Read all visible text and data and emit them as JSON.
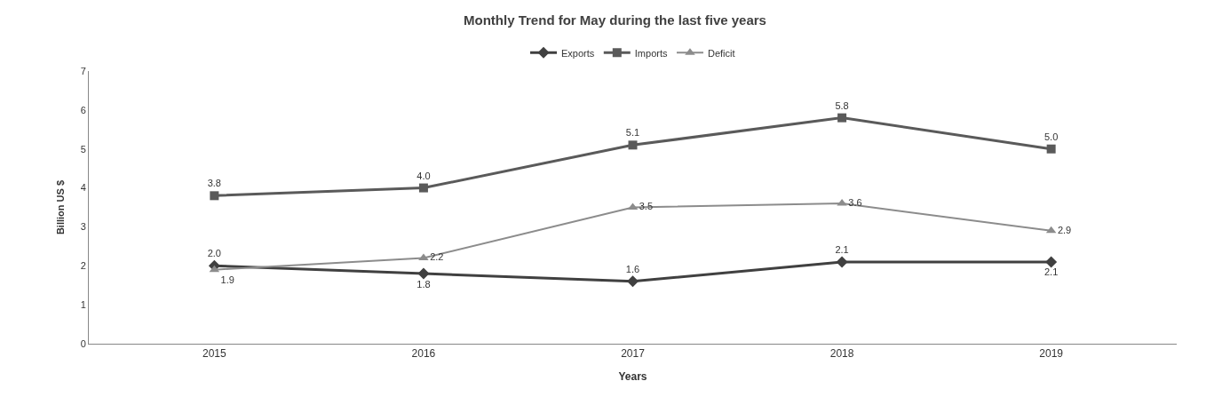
{
  "chart_data": {
    "type": "line",
    "title": "Monthly Trend for May during the last five years",
    "xlabel": "Years",
    "ylabel": "Billion US $",
    "categories": [
      "2015",
      "2016",
      "2017",
      "2018",
      "2019"
    ],
    "series": [
      {
        "name": "Exports",
        "color": "#404040",
        "marker": "diamond",
        "values": [
          2.0,
          1.8,
          1.6,
          2.1,
          2.1
        ],
        "value_labels": [
          "2.0",
          "1.8",
          "1.6",
          "2.1",
          "2.1"
        ]
      },
      {
        "name": "Imports",
        "color": "#5a5a5a",
        "marker": "square",
        "values": [
          3.8,
          4.0,
          5.1,
          5.8,
          5.0
        ],
        "value_labels": [
          "3.8",
          "4.0",
          "5.1",
          "5.8",
          "5.0"
        ]
      },
      {
        "name": "Deficit",
        "color": "#8c8c8c",
        "marker": "triangle",
        "values": [
          1.9,
          2.2,
          3.5,
          3.6,
          2.9
        ],
        "value_labels": [
          "1.9",
          "2.2",
          "3.5",
          "3.6",
          "2.9"
        ]
      }
    ],
    "ylim": [
      0,
      7
    ],
    "yticks": [
      0,
      1,
      2,
      3,
      4,
      5,
      6,
      7
    ],
    "legend": "top"
  }
}
